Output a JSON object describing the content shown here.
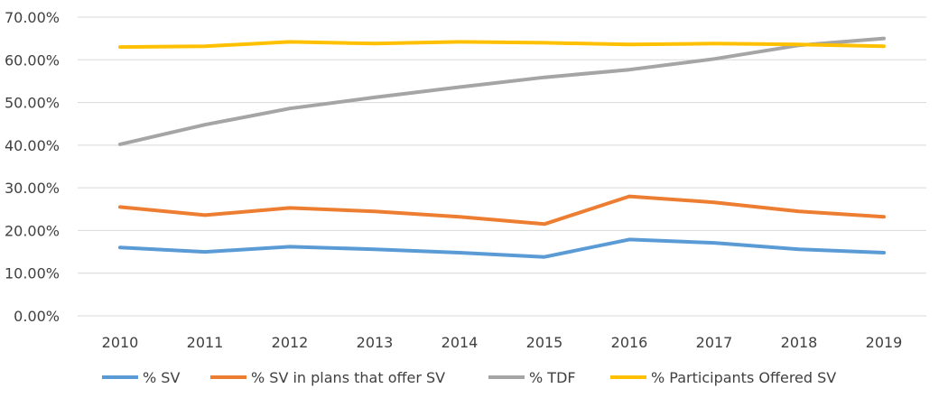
{
  "chart_data": {
    "type": "line",
    "categories": [
      "2010",
      "2011",
      "2012",
      "2013",
      "2014",
      "2015",
      "2016",
      "2017",
      "2018",
      "2019"
    ],
    "y_ticks": [
      "0.00%",
      "10.00%",
      "20.00%",
      "30.00%",
      "40.00%",
      "50.00%",
      "60.00%",
      "70.00%"
    ],
    "ylim": [
      0,
      70
    ],
    "grid": true,
    "legend_position": "bottom",
    "series": [
      {
        "name": "% SV",
        "color": "#5B9BD5",
        "values": [
          16.0,
          15.0,
          16.2,
          15.6,
          14.8,
          13.8,
          17.9,
          17.1,
          15.6,
          14.8
        ]
      },
      {
        "name": "% SV in plans that offer SV",
        "color": "#ED7D31",
        "values": [
          25.5,
          23.6,
          25.3,
          24.5,
          23.2,
          21.5,
          28.0,
          26.6,
          24.5,
          23.2
        ]
      },
      {
        "name": "% TDF",
        "color": "#A5A5A5",
        "values": [
          40.2,
          44.8,
          48.6,
          51.2,
          53.6,
          55.9,
          57.7,
          60.2,
          63.4,
          65.0
        ]
      },
      {
        "name": "% Participants Offered SV",
        "color": "#FFC000",
        "values": [
          63.0,
          63.2,
          64.2,
          63.8,
          64.2,
          64.0,
          63.6,
          63.8,
          63.6,
          63.2
        ]
      }
    ]
  }
}
